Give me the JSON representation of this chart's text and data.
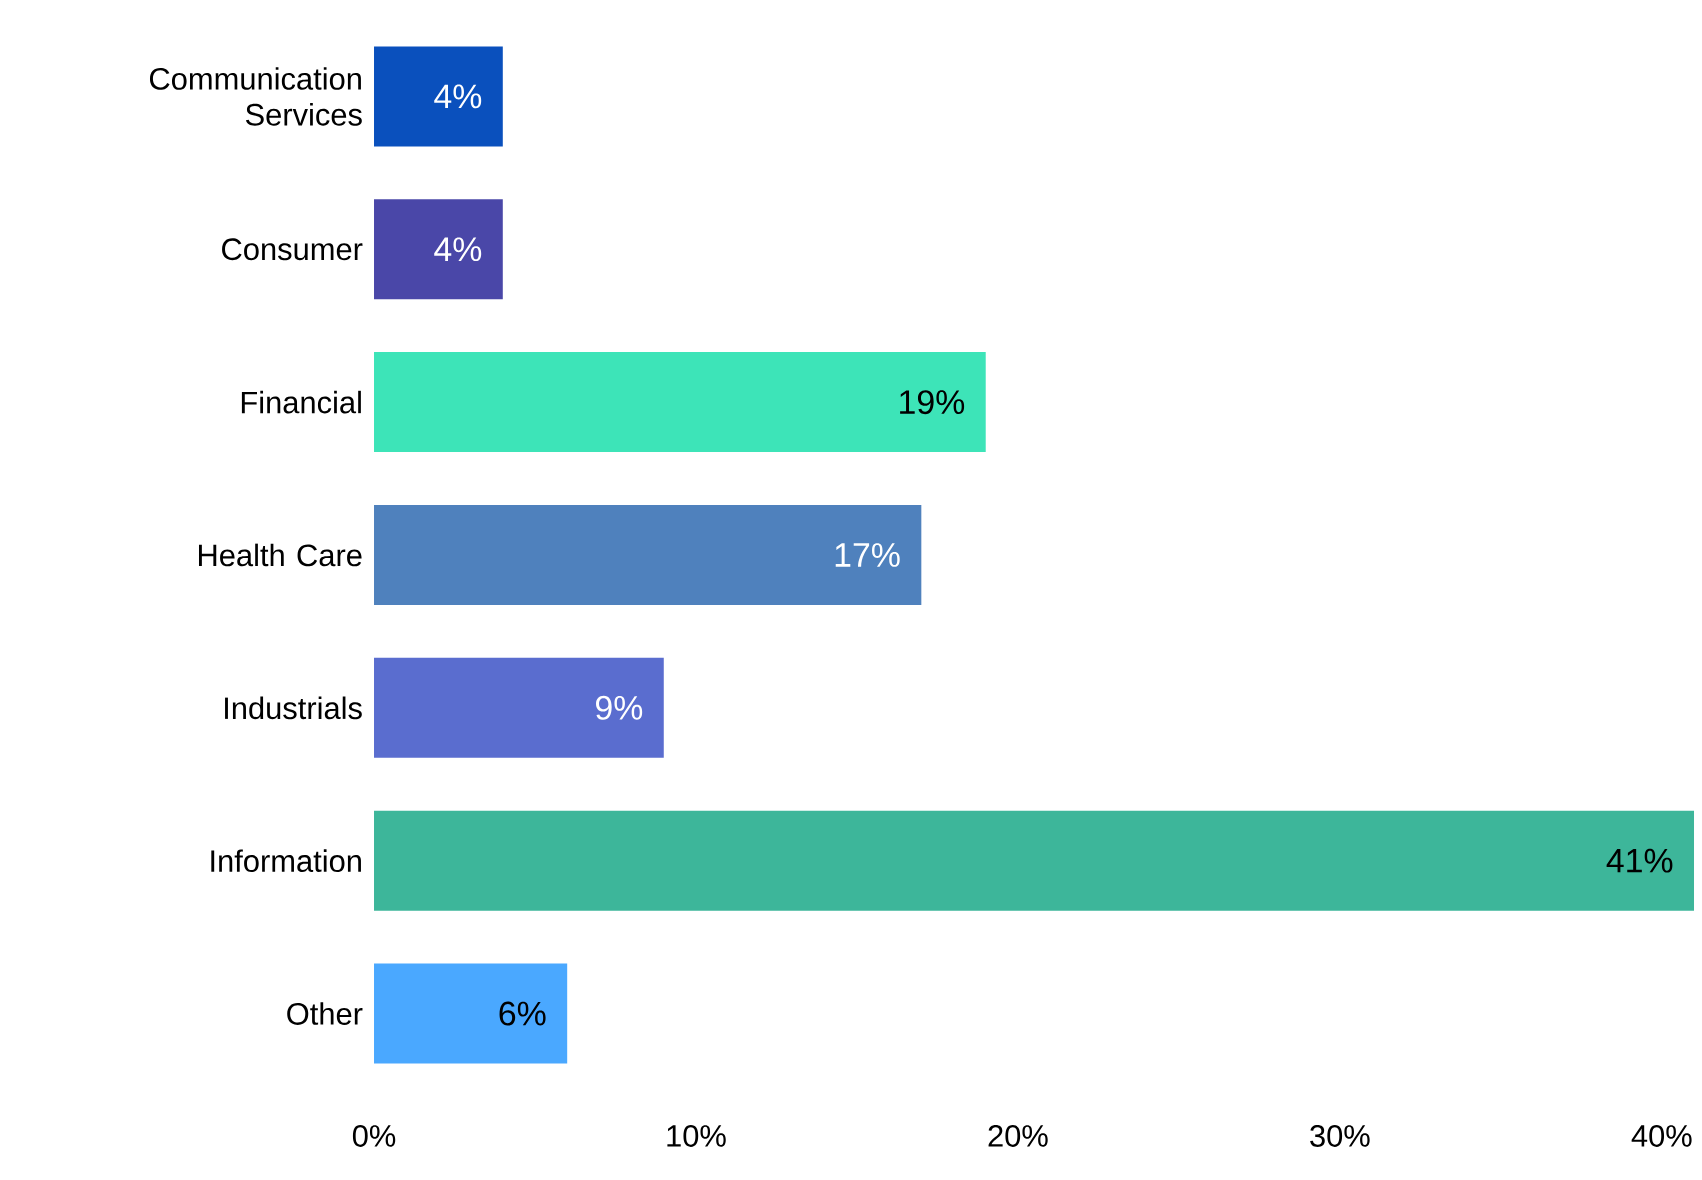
{
  "chart_data": {
    "type": "bar",
    "orientation": "horizontal",
    "categories": [
      "Communication Services",
      "Consumer",
      "Financial",
      "Health Care",
      "Industrials",
      "Information",
      "Other"
    ],
    "values": [
      4,
      4,
      19,
      17,
      9,
      41,
      6
    ],
    "value_labels": [
      "4%",
      "4%",
      "19%",
      "17%",
      "9%",
      "41%",
      "6%"
    ],
    "colors": [
      "#0a50bd",
      "#4a47a8",
      "#3de4b8",
      "#4f81bd",
      "#5a6dcf",
      "#3db69a",
      "#4aa8ff"
    ],
    "xlim": [
      0,
      41
    ],
    "xticks": [
      {
        "value": 0,
        "label": "0%"
      },
      {
        "value": 10,
        "label": "10%"
      },
      {
        "value": 20,
        "label": "20%"
      },
      {
        "value": 30,
        "label": "30%"
      },
      {
        "value": 40,
        "label": "40%"
      }
    ],
    "grid": false
  }
}
